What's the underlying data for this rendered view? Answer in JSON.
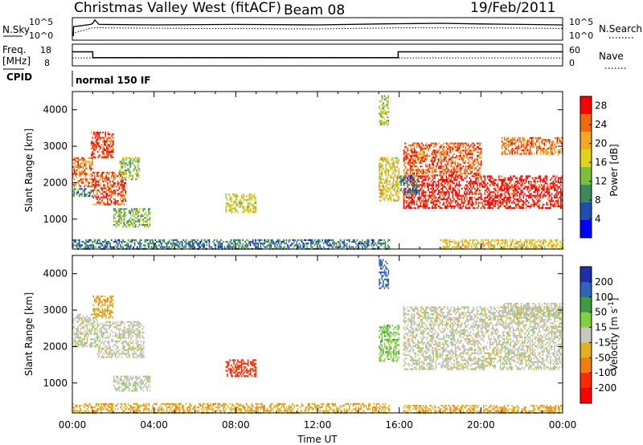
{
  "header": {
    "station": "Christmas Valley West (fitACF)",
    "beam": "Beam 08",
    "date": "19/Feb/2011"
  },
  "colors": {
    "axis": "#000000",
    "power_scale": [
      "#0000ff",
      "#1f4faa",
      "#3a8a5c",
      "#7fbf3f",
      "#e3d21a",
      "#f5a623",
      "#f26a10",
      "#ff0000"
    ],
    "velocity_scale": [
      "#1f2fa8",
      "#2f63b8",
      "#3f9a3f",
      "#7fd13f",
      "#c8c8c0",
      "#e0b020",
      "#f07d10",
      "#ff2a00",
      "#ff0000"
    ],
    "ground_scatter": "#c0c0b8"
  },
  "chart_data": [
    {
      "type": "line",
      "name": "noise-panel",
      "left_label": "N.Sky",
      "right_label": "N.Search",
      "left_ticks": [
        "10^5",
        "10^0"
      ],
      "right_ticks": [
        "10^5",
        "10^0"
      ],
      "series": [
        {
          "name": "N.Sky",
          "style": "solid",
          "points": [
            [
              0,
              0.2
            ],
            [
              0.05,
              0.2
            ],
            [
              0.06,
              0.6
            ],
            [
              0.9,
              0.7
            ],
            [
              1.0,
              0.75
            ],
            [
              1.1,
              0.9
            ],
            [
              1.3,
              0.7
            ],
            [
              4,
              0.68
            ],
            [
              8,
              0.7
            ],
            [
              12,
              0.68
            ],
            [
              15,
              0.72
            ],
            [
              18,
              0.75
            ],
            [
              20,
              0.72
            ],
            [
              22,
              0.7
            ],
            [
              24,
              0.68
            ]
          ]
        },
        {
          "name": "N.Search",
          "style": "dotted",
          "points": [
            [
              0,
              0.3
            ],
            [
              1,
              0.55
            ],
            [
              6,
              0.52
            ],
            [
              12,
              0.5
            ],
            [
              16,
              0.55
            ],
            [
              20,
              0.55
            ],
            [
              24,
              0.52
            ]
          ]
        }
      ]
    },
    {
      "type": "line",
      "name": "frequency-panel",
      "left_label": "Freq. [MHz]",
      "right_label": "Nave",
      "left_ticks": [
        18,
        8
      ],
      "right_ticks": [
        60,
        0
      ],
      "series": [
        {
          "name": "Freq",
          "style": "solid",
          "points": [
            [
              0,
              14.5
            ],
            [
              1.0,
              14.5
            ],
            [
              1.0,
              11.8
            ],
            [
              15.95,
              11.8
            ],
            [
              15.95,
              14.5
            ],
            [
              24,
              14.5
            ]
          ]
        },
        {
          "name": "Nave",
          "style": "dotted",
          "points": [
            [
              0,
              22
            ],
            [
              24,
              22
            ]
          ]
        }
      ]
    },
    {
      "type": "table",
      "name": "cpid-panel",
      "label": "CPID",
      "value": "normal 150 IF"
    },
    {
      "type": "heatmap",
      "name": "power-panel",
      "ylabel": "Slant Range [km]",
      "xlim": [
        0,
        24
      ],
      "ylim": [
        180,
        4500
      ],
      "yticks": [
        1000,
        2000,
        3000,
        4000
      ],
      "colorbar_label": "Power [dB]",
      "colorbar_ticks": [
        4,
        8,
        12,
        16,
        20,
        24,
        28
      ],
      "colorbar_range": [
        0,
        30
      ],
      "regions": [
        {
          "t": [
            0.0,
            1.0
          ],
          "r": [
            1900,
            2700
          ],
          "level": 24
        },
        {
          "t": [
            0.9,
            2.0
          ],
          "r": [
            2700,
            3400
          ],
          "level": 26
        },
        {
          "t": [
            1.0,
            2.6
          ],
          "r": [
            1400,
            2300
          ],
          "level": 26
        },
        {
          "t": [
            2.3,
            3.3
          ],
          "r": [
            2100,
            2700
          ],
          "level": 14
        },
        {
          "t": [
            2.0,
            3.8
          ],
          "r": [
            800,
            1300
          ],
          "level": 12
        },
        {
          "t": [
            0.0,
            1.0
          ],
          "r": [
            1650,
            1850
          ],
          "level": 8
        },
        {
          "t": [
            7.5,
            9.0
          ],
          "r": [
            1200,
            1700
          ],
          "level": 16
        },
        {
          "t": [
            0.0,
            15.5
          ],
          "r": [
            200,
            450
          ],
          "level": 8
        },
        {
          "t": [
            15.0,
            15.5
          ],
          "r": [
            3600,
            4400
          ],
          "level": 14
        },
        {
          "t": [
            15.0,
            16.0
          ],
          "r": [
            1500,
            2700
          ],
          "level": 18
        },
        {
          "t": [
            16.2,
            24.0
          ],
          "r": [
            1300,
            2200
          ],
          "level": 29
        },
        {
          "t": [
            16.2,
            20.0
          ],
          "r": [
            2200,
            3100
          ],
          "level": 25
        },
        {
          "t": [
            16.0,
            17.0
          ],
          "r": [
            1700,
            2200
          ],
          "level": 8
        },
        {
          "t": [
            21.0,
            24.0
          ],
          "r": [
            2800,
            3250
          ],
          "level": 24
        },
        {
          "t": [
            18.0,
            24.0
          ],
          "r": [
            180,
            450
          ],
          "level": 18
        }
      ]
    },
    {
      "type": "heatmap",
      "name": "velocity-panel",
      "xlabel": "Time UT",
      "ylabel": "Slant Range [km]",
      "xlim": [
        0,
        24
      ],
      "ylim": [
        180,
        4500
      ],
      "yticks": [
        1000,
        2000,
        3000,
        4000
      ],
      "xticks": [
        "00:00",
        "04:00",
        "08:00",
        "12:00",
        "16:00",
        "20:00",
        "00:00"
      ],
      "colorbar_label": "Velocity [m s^-1]",
      "colorbar_ticks": [
        200,
        100,
        50,
        15,
        -15,
        -50,
        -100,
        -200
      ],
      "regions": [
        {
          "t": [
            0.0,
            1.2
          ],
          "r": [
            2000,
            2900
          ],
          "value": 0
        },
        {
          "t": [
            1.0,
            2.0
          ],
          "r": [
            2800,
            3400
          ],
          "value": -40
        },
        {
          "t": [
            1.2,
            3.5
          ],
          "r": [
            1700,
            2700
          ],
          "value": 0
        },
        {
          "t": [
            2.0,
            3.8
          ],
          "r": [
            800,
            1200
          ],
          "value": 5
        },
        {
          "t": [
            7.5,
            9.0
          ],
          "r": [
            1200,
            1650
          ],
          "value": -150
        },
        {
          "t": [
            0.0,
            15.5
          ],
          "r": [
            200,
            450
          ],
          "value": -40
        },
        {
          "t": [
            15.0,
            15.5
          ],
          "r": [
            3600,
            4400
          ],
          "value": 120
        },
        {
          "t": [
            15.0,
            16.0
          ],
          "r": [
            1600,
            2600
          ],
          "value": 40
        },
        {
          "t": [
            16.2,
            24.0
          ],
          "r": [
            1400,
            3100
          ],
          "value": 0
        },
        {
          "t": [
            21.0,
            24.0
          ],
          "r": [
            2800,
            3200
          ],
          "value": 0
        },
        {
          "t": [
            16.2,
            24.0
          ],
          "r": [
            200,
            400
          ],
          "value": -40
        }
      ]
    }
  ]
}
